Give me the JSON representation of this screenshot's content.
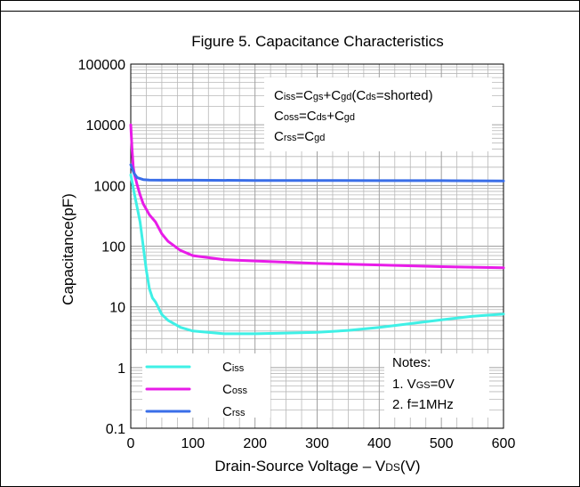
{
  "chart_data": {
    "type": "line",
    "title": "Figure 5. Capacitance Characteristics",
    "xlabel": "Drain-Source Voltage",
    "xlabel_symbol": "V",
    "xlabel_sub": "DS",
    "xlabel_unit": "(V)",
    "ylabel": "Capacitance(pF)",
    "xlim": [
      0,
      600
    ],
    "ylim": [
      0.1,
      100000
    ],
    "y_scale": "log",
    "grid": true,
    "x_ticks": [
      "0",
      "100",
      "200",
      "300",
      "400",
      "500",
      "600"
    ],
    "y_ticks": [
      "0.1",
      "1",
      "10",
      "100",
      "1000",
      "10000",
      "100000"
    ],
    "legend_position": "bottom-left",
    "series": [
      {
        "name": "Ciss",
        "name_main": "C",
        "name_sub": "iss",
        "color": "#3ff0e6",
        "x": [
          0,
          5,
          10,
          15,
          20,
          25,
          30,
          35,
          40,
          50,
          60,
          80,
          100,
          150,
          200,
          250,
          300,
          350,
          400,
          450,
          500,
          550,
          600
        ],
        "y": [
          1500,
          800,
          450,
          250,
          100,
          40,
          20,
          14,
          12,
          7.5,
          6,
          4.6,
          4.0,
          3.6,
          3.6,
          3.7,
          3.8,
          4.1,
          4.6,
          5.3,
          6.1,
          7.0,
          7.6
        ]
      },
      {
        "name": "Coss",
        "name_main": "C",
        "name_sub": "oss",
        "color": "#e81ce8",
        "x": [
          0,
          2,
          4,
          6,
          10,
          15,
          20,
          30,
          40,
          50,
          60,
          80,
          100,
          150,
          200,
          300,
          400,
          500,
          600
        ],
        "y": [
          10000,
          4000,
          2000,
          1500,
          1050,
          700,
          500,
          330,
          250,
          160,
          120,
          85,
          70,
          60,
          57,
          52,
          49,
          46,
          44
        ]
      },
      {
        "name": "Crss",
        "name_main": "C",
        "name_sub": "rss",
        "color": "#3a6ee8",
        "x": [
          0,
          5,
          10,
          20,
          30,
          50,
          100,
          200,
          300,
          400,
          500,
          600
        ],
        "y": [
          2200,
          1600,
          1350,
          1250,
          1230,
          1220,
          1220,
          1210,
          1210,
          1200,
          1200,
          1190
        ]
      }
    ],
    "annotations": {
      "formulas": [
        {
          "a": "C",
          "a_sub": "iss",
          "b": "=C",
          "b_sub": "gs",
          "c": "+C",
          "c_sub": "gd",
          "d": "(C",
          "d_sub": "ds",
          "e": "=shorted)"
        },
        {
          "a": "C",
          "a_sub": "oss",
          "b": "=C",
          "b_sub": "ds",
          "c": "+C",
          "c_sub": "gd",
          "d": "",
          "d_sub": "",
          "e": ""
        },
        {
          "a": "C",
          "a_sub": "rss",
          "b": "=C",
          "b_sub": "gd",
          "c": "",
          "c_sub": "",
          "d": "",
          "d_sub": "",
          "e": ""
        }
      ],
      "notes_title": "Notes:",
      "note1_pre": "1. V",
      "note1_sub": "GS",
      "note1_post": "=0V",
      "note2": "2. f=1MHz"
    }
  }
}
